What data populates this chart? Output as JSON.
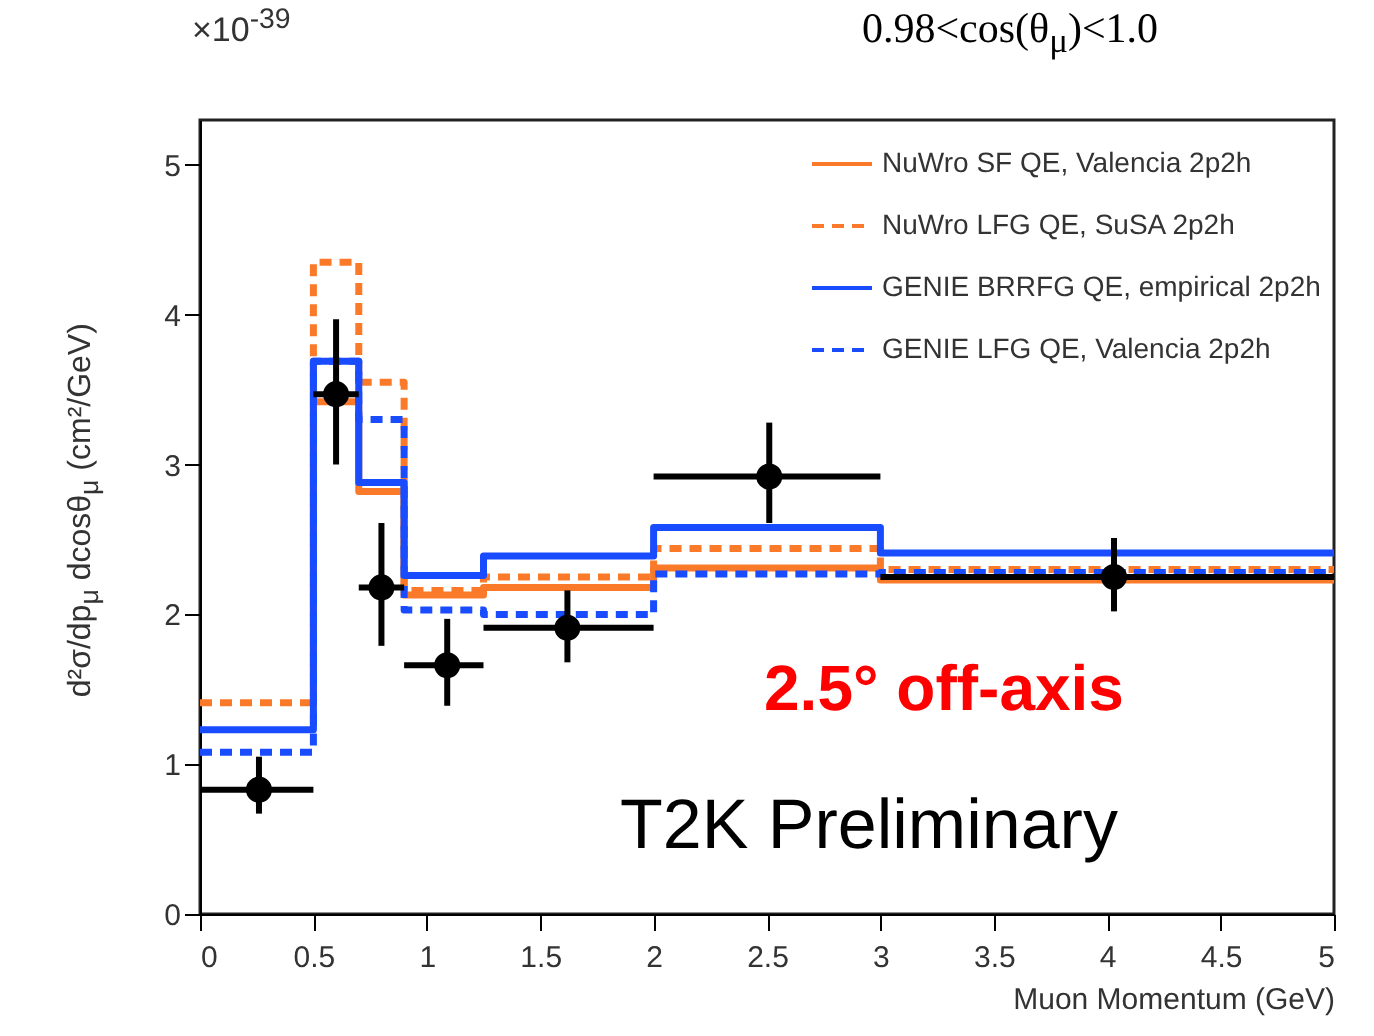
{
  "chart_data": {
    "type": "step",
    "title": "0.98<cos(θ$_{μ}$)<1.0",
    "xlabel": "Muon Momentum (GeV)",
    "ylabel": "d²σ/dp$_{μ}$ dcosθ$_{μ}$ (cm²/GeV)",
    "annotations": [
      "×10$^{-39}$",
      "2.5° off-axis",
      "T2K Preliminary"
    ],
    "x": [
      0,
      0.5,
      0.7,
      0.9,
      1.25,
      2,
      3,
      5
    ],
    "series": [
      {
        "name": "NuWro SF QE, Valencia 2p2h",
        "color": "#fa7a2a",
        "line_style": "solid",
        "values": [
          null,
          3.42,
          2.82,
          2.13,
          2.18,
          2.31,
          2.23,
          2.23
        ]
      },
      {
        "name": "NuWro LFG QE, SuSA 2p2h",
        "color": "#fa7a2a",
        "line_style": "dashed",
        "values": [
          1.41,
          4.35,
          3.55,
          2.16,
          2.25,
          2.44,
          2.3,
          2.3
        ]
      },
      {
        "name": "GENIE BRRFG QE, empirical 2p2h",
        "color": "#1a4cff",
        "line_style": "solid",
        "values": [
          1.23,
          3.69,
          2.88,
          2.26,
          2.39,
          2.58,
          2.41,
          2.41
        ]
      },
      {
        "name": "GENIE LFG QE, Valencia 2p2h",
        "color": "#1a4cff",
        "line_style": "dashed",
        "values": [
          1.08,
          3.69,
          3.3,
          2.03,
          2.0,
          2.27,
          2.28,
          2.28
        ]
      },
      {
        "type": "scatter",
        "color": "#000000",
        "marker": "circle",
        "x": [
          0.26,
          0.6,
          0.8,
          1.09,
          1.62,
          2.51,
          4.03
        ],
        "values": [
          0.83,
          3.47,
          2.18,
          1.66,
          1.91,
          2.92,
          2.25
        ],
        "errors": [
          [
            0.67,
            1.05
          ],
          [
            3.0,
            3.97
          ],
          [
            1.79,
            2.61
          ],
          [
            1.39,
            1.97
          ],
          [
            1.68,
            2.16
          ],
          [
            2.61,
            3.28
          ],
          [
            2.02,
            2.51
          ]
        ],
        "xerrors": [
          [
            0,
            0.5
          ],
          [
            0.5,
            0.7
          ],
          [
            0.7,
            0.9
          ],
          [
            0.9,
            1.25
          ],
          [
            1.25,
            2
          ],
          [
            2,
            3
          ],
          [
            3,
            5
          ]
        ]
      }
    ],
    "xlim": [
      0,
      5
    ],
    "xticks": [
      0,
      0.5,
      1,
      1.5,
      2,
      2.5,
      3,
      3.5,
      4,
      4.5,
      5
    ],
    "ylim": [
      0,
      5.3
    ],
    "yticks": [
      0,
      1,
      2,
      3,
      4,
      5
    ],
    "grid": false,
    "legend": "top right"
  }
}
